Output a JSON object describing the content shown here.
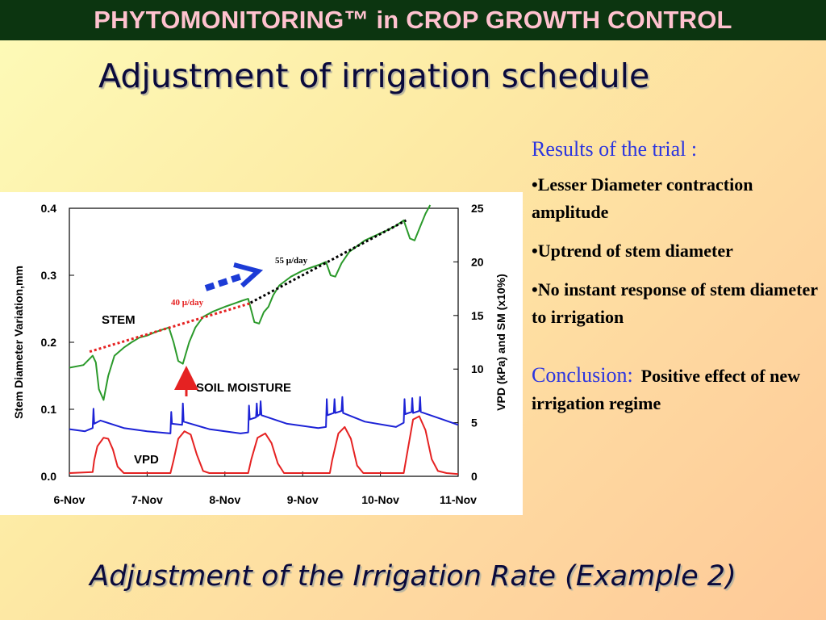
{
  "banner": "PHYTOMONITORING™ in CROP GROWTH CONTROL",
  "subtitle": "Adjustment of irrigation schedule",
  "notes": {
    "heading": "Results of the trial :",
    "bullets": [
      "•Lesser Diameter contraction amplitude",
      "•Uptrend of stem diameter",
      "•No instant response of stem diameter to irrigation"
    ],
    "conclusion_label": "Conclusion:",
    "conclusion_text": "Positive effect of new irrigation regime"
  },
  "footer": "Adjustment of the Irrigation Rate (Example 2)",
  "chart_data": {
    "type": "line",
    "ylabel_left": "Stem Diameter Variation,mm",
    "ylabel_right": "VPD (kPa) and SM (x10%)",
    "ylim_left": [
      0,
      0.4
    ],
    "ylim_right": [
      0,
      25
    ],
    "yticks_left": [
      "0.0",
      "0.1",
      "0.2",
      "0.3",
      "0.4"
    ],
    "yticks_right": [
      "0",
      "5",
      "10",
      "15",
      "20",
      "25"
    ],
    "x_ticks": [
      "6-Nov",
      "7-Nov",
      "8-Nov",
      "9-Nov",
      "10-Nov",
      "11-Nov"
    ],
    "xlim_days": [
      0,
      5
    ],
    "colors": {
      "stem": "#2b9a2b",
      "soil": "#1c22d6",
      "vpd": "#e52222",
      "trend40": "#e52222",
      "trend55": "#000000",
      "arrow_blue": "#1c3bd6",
      "arrow_red": "#e52222"
    },
    "series": [
      {
        "name": "STEM",
        "axis": "left",
        "points": [
          [
            0,
            0.162
          ],
          [
            0.18,
            0.166
          ],
          [
            0.3,
            0.18
          ],
          [
            0.34,
            0.17
          ],
          [
            0.38,
            0.13
          ],
          [
            0.44,
            0.114
          ],
          [
            0.5,
            0.15
          ],
          [
            0.58,
            0.18
          ],
          [
            0.7,
            0.192
          ],
          [
            0.8,
            0.2
          ],
          [
            0.9,
            0.207
          ],
          [
            1.0,
            0.21
          ],
          [
            1.1,
            0.215
          ],
          [
            1.2,
            0.219
          ],
          [
            1.28,
            0.222
          ],
          [
            1.34,
            0.2
          ],
          [
            1.4,
            0.172
          ],
          [
            1.46,
            0.168
          ],
          [
            1.54,
            0.2
          ],
          [
            1.62,
            0.222
          ],
          [
            1.72,
            0.238
          ],
          [
            1.85,
            0.246
          ],
          [
            2.0,
            0.253
          ],
          [
            2.12,
            0.258
          ],
          [
            2.22,
            0.262
          ],
          [
            2.3,
            0.265
          ],
          [
            2.38,
            0.23
          ],
          [
            2.44,
            0.228
          ],
          [
            2.5,
            0.245
          ],
          [
            2.56,
            0.253
          ],
          [
            2.62,
            0.27
          ],
          [
            2.7,
            0.285
          ],
          [
            2.85,
            0.298
          ],
          [
            3.0,
            0.307
          ],
          [
            3.12,
            0.312
          ],
          [
            3.22,
            0.316
          ],
          [
            3.3,
            0.32
          ],
          [
            3.36,
            0.3
          ],
          [
            3.42,
            0.298
          ],
          [
            3.5,
            0.318
          ],
          [
            3.6,
            0.335
          ],
          [
            3.8,
            0.352
          ],
          [
            3.95,
            0.36
          ],
          [
            4.1,
            0.368
          ],
          [
            4.2,
            0.374
          ],
          [
            4.3,
            0.382
          ],
          [
            4.38,
            0.355
          ],
          [
            4.44,
            0.352
          ],
          [
            4.52,
            0.375
          ],
          [
            4.58,
            0.392
          ],
          [
            4.64,
            0.405
          ]
        ]
      },
      {
        "name": "SOIL MOISTURE",
        "axis": "right",
        "points": [
          [
            0,
            4.4
          ],
          [
            0.2,
            4.2
          ],
          [
            0.3,
            4.5
          ],
          [
            0.31,
            6.3
          ],
          [
            0.32,
            4.9
          ],
          [
            0.4,
            5.2
          ],
          [
            0.7,
            4.5
          ],
          [
            1.0,
            4.2
          ],
          [
            1.3,
            4.0
          ],
          [
            1.31,
            6.0
          ],
          [
            1.32,
            4.9
          ],
          [
            1.45,
            4.8
          ],
          [
            1.46,
            6.8
          ],
          [
            1.47,
            5.1
          ],
          [
            1.8,
            4.4
          ],
          [
            2.2,
            4.0
          ],
          [
            2.3,
            4.1
          ],
          [
            2.31,
            6.6
          ],
          [
            2.32,
            5.3
          ],
          [
            2.4,
            5.5
          ],
          [
            2.41,
            6.8
          ],
          [
            2.42,
            5.6
          ],
          [
            2.45,
            5.8
          ],
          [
            2.46,
            7.0
          ],
          [
            2.47,
            5.7
          ],
          [
            2.8,
            4.9
          ],
          [
            3.2,
            4.5
          ],
          [
            3.3,
            4.6
          ],
          [
            3.31,
            7.2
          ],
          [
            3.32,
            5.7
          ],
          [
            3.4,
            5.9
          ],
          [
            3.41,
            7.2
          ],
          [
            3.42,
            5.9
          ],
          [
            3.5,
            6.1
          ],
          [
            3.51,
            7.4
          ],
          [
            3.52,
            5.9
          ],
          [
            3.8,
            5.1
          ],
          [
            4.2,
            4.6
          ],
          [
            4.3,
            5.0
          ],
          [
            4.31,
            7.2
          ],
          [
            4.32,
            5.8
          ],
          [
            4.4,
            6.0
          ],
          [
            4.41,
            7.3
          ],
          [
            4.42,
            5.9
          ],
          [
            4.5,
            6.1
          ],
          [
            4.51,
            7.4
          ],
          [
            4.52,
            6.0
          ],
          [
            4.8,
            5.3
          ],
          [
            5.0,
            4.8
          ]
        ]
      },
      {
        "name": "VPD",
        "axis": "right",
        "points": [
          [
            0,
            0.3
          ],
          [
            0.3,
            0.4
          ],
          [
            0.32,
            1.5
          ],
          [
            0.36,
            2.8
          ],
          [
            0.44,
            3.6
          ],
          [
            0.5,
            3.5
          ],
          [
            0.56,
            2.5
          ],
          [
            0.62,
            0.9
          ],
          [
            0.7,
            0.3
          ],
          [
            1.3,
            0.3
          ],
          [
            1.34,
            1.5
          ],
          [
            1.4,
            3.5
          ],
          [
            1.48,
            4.2
          ],
          [
            1.56,
            3.9
          ],
          [
            1.64,
            2.0
          ],
          [
            1.72,
            0.5
          ],
          [
            1.8,
            0.3
          ],
          [
            2.3,
            0.3
          ],
          [
            2.34,
            1.6
          ],
          [
            2.42,
            3.6
          ],
          [
            2.52,
            4.0
          ],
          [
            2.6,
            3.1
          ],
          [
            2.68,
            1.2
          ],
          [
            2.76,
            0.3
          ],
          [
            3.35,
            0.3
          ],
          [
            3.38,
            1.5
          ],
          [
            3.46,
            4.0
          ],
          [
            3.54,
            4.6
          ],
          [
            3.62,
            3.5
          ],
          [
            3.7,
            1.0
          ],
          [
            3.78,
            0.3
          ],
          [
            4.3,
            0.3
          ],
          [
            4.34,
            2.0
          ],
          [
            4.42,
            5.3
          ],
          [
            4.5,
            5.6
          ],
          [
            4.58,
            4.3
          ],
          [
            4.66,
            1.6
          ],
          [
            4.74,
            0.5
          ],
          [
            4.85,
            0.3
          ],
          [
            5.0,
            0.2
          ]
        ]
      }
    ],
    "annotations": {
      "stem_label": "STEM",
      "soil_label": "SOIL MOISTURE",
      "vpd_label": "VPD",
      "trend40_label": "40 μ/day",
      "trend55_label": "55 μ/day",
      "trend40": [
        [
          0.26,
          0.186
        ],
        [
          2.35,
          0.259
        ]
      ],
      "trend55": [
        [
          2.33,
          0.259
        ],
        [
          4.33,
          0.382
        ]
      ]
    }
  }
}
